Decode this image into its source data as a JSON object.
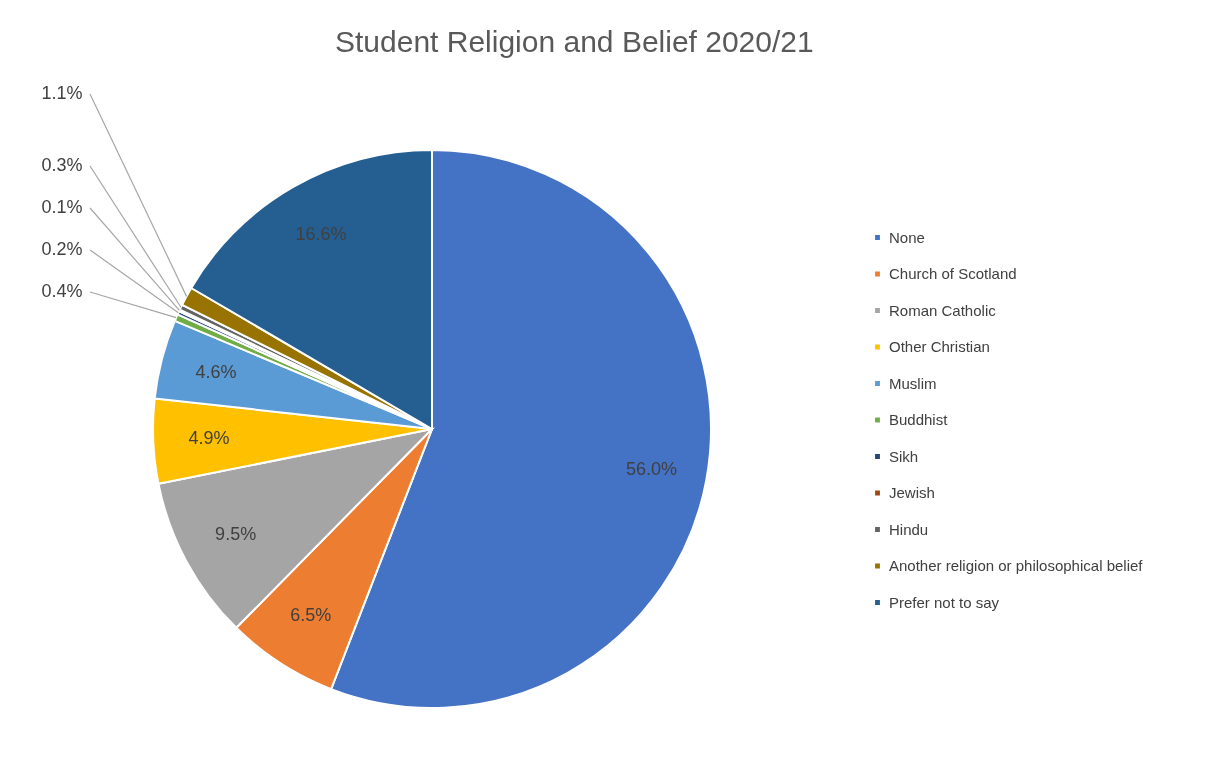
{
  "chart_data": {
    "type": "pie",
    "title": "Student Religion and Belief 2020/21",
    "categories": [
      "None",
      "Church of Scotland",
      "Roman Catholic",
      "Other Christian",
      "Muslim",
      "Buddhist",
      "Sikh",
      "Jewish",
      "Hindu",
      "Another religion or philosophical belief",
      "Prefer not to say"
    ],
    "values": [
      56.0,
      6.5,
      9.5,
      4.9,
      4.6,
      0.4,
      0.2,
      0.1,
      0.3,
      1.1,
      16.6
    ],
    "colors": [
      "#4472c4",
      "#ed7d31",
      "#a5a5a5",
      "#ffc000",
      "#5b9bd5",
      "#70ad47",
      "#264478",
      "#9e480e",
      "#636363",
      "#997300",
      "#255e91"
    ],
    "value_labels": [
      "56.0%",
      "6.5%",
      "9.5%",
      "4.9%",
      "4.6%",
      "0.4%",
      "0.2%",
      "0.1%",
      "0.3%",
      "1.1%",
      "16.6%"
    ],
    "legend": "right"
  }
}
